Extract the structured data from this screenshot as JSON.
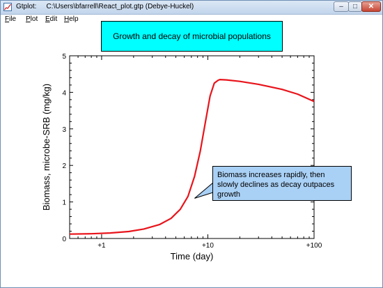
{
  "window": {
    "app_name": "Gtplot:",
    "path": "C:\\Users\\bfarrell\\React_plot.gtp  (Debye-Huckel)",
    "controls": {
      "minimize": "–",
      "maximize": "□",
      "close": "✕"
    }
  },
  "menu": [
    {
      "label": "File",
      "key": "F",
      "rest": "ile"
    },
    {
      "label": "Plot",
      "key": "P",
      "rest": "lot"
    },
    {
      "label": "Edit",
      "key": "E",
      "rest": "dit"
    },
    {
      "label": "Help",
      "key": "H",
      "rest": "elp"
    }
  ],
  "icons": [
    "app-icon",
    "minimize-icon",
    "maximize-icon",
    "close-icon"
  ],
  "colors": {
    "curve": "#e8141b",
    "title_box": "#00ffff",
    "callout": "#a9d0f5"
  },
  "chart_data": {
    "type": "line",
    "title": "Growth and decay of microbial populations",
    "xlabel": "Time (day)",
    "ylabel": "Biomass, microbe-SRB (mg/kg)",
    "x_scale": "log",
    "xlim": [
      0.5,
      100
    ],
    "ylim": [
      0,
      5
    ],
    "x_ticks": [
      {
        "value": 1,
        "label": "+1"
      },
      {
        "value": 10,
        "label": "+10"
      },
      {
        "value": 100,
        "label": "+100"
      }
    ],
    "y_ticks": [
      0,
      1,
      2,
      3,
      4,
      5
    ],
    "grid": false,
    "series": [
      {
        "x": [
          0.5,
          0.8,
          1.2,
          1.8,
          2.5,
          3.5,
          4.5,
          5.5,
          6.5,
          7.5,
          8.5,
          9.5,
          10.5,
          11.5,
          12.5,
          13,
          15,
          20,
          30,
          50,
          70,
          100
        ],
        "values": [
          0.12,
          0.13,
          0.15,
          0.19,
          0.26,
          0.38,
          0.55,
          0.8,
          1.15,
          1.7,
          2.4,
          3.2,
          3.9,
          4.25,
          4.33,
          4.35,
          4.34,
          4.3,
          4.22,
          4.08,
          3.95,
          3.75
        ]
      }
    ],
    "annotations": [
      {
        "text": "Biomass increases rapidly, then slowly declines as decay outpaces growth",
        "x": 7.5,
        "y": 1.1
      }
    ]
  }
}
